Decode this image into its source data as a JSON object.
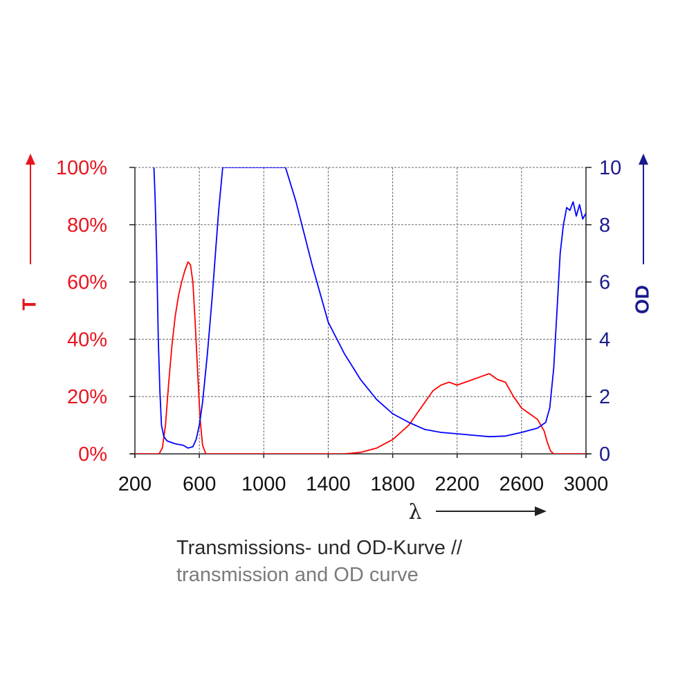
{
  "chart_data": {
    "type": "line",
    "x_axis": {
      "label": "λ",
      "range": [
        200,
        3000
      ],
      "ticks": [
        200,
        600,
        1000,
        1400,
        1800,
        2200,
        2600,
        3000
      ],
      "tick_labels": [
        "200",
        "600",
        "1000",
        "1400",
        "1800",
        "2200",
        "2600",
        "3000"
      ]
    },
    "y_left": {
      "label": "T",
      "range": [
        0,
        100
      ],
      "ticks": [
        0,
        20,
        40,
        60,
        80,
        100
      ],
      "tick_labels": [
        "0%",
        "20%",
        "40%",
        "60%",
        "80%",
        "100%"
      ],
      "color": "#e8141e"
    },
    "y_right": {
      "label": "OD",
      "range": [
        0,
        10
      ],
      "ticks": [
        0,
        2,
        4,
        6,
        8,
        10
      ],
      "tick_labels": [
        "0",
        "2",
        "4",
        "6",
        "8",
        "10"
      ],
      "color": "#1a1a8c"
    },
    "grid": true,
    "series": [
      {
        "axis": "left",
        "color": "#ff0000",
        "points": [
          [
            200,
            0
          ],
          [
            350,
            0
          ],
          [
            370,
            2
          ],
          [
            390,
            10
          ],
          [
            410,
            25
          ],
          [
            430,
            38
          ],
          [
            450,
            48
          ],
          [
            470,
            55
          ],
          [
            490,
            60
          ],
          [
            510,
            64
          ],
          [
            530,
            67
          ],
          [
            545,
            66
          ],
          [
            560,
            60
          ],
          [
            575,
            45
          ],
          [
            590,
            28
          ],
          [
            605,
            12
          ],
          [
            620,
            3
          ],
          [
            640,
            0
          ],
          [
            1500,
            0
          ],
          [
            1600,
            0.5
          ],
          [
            1700,
            2
          ],
          [
            1800,
            5
          ],
          [
            1850,
            7.5
          ],
          [
            1900,
            10
          ],
          [
            1950,
            14
          ],
          [
            2000,
            18
          ],
          [
            2050,
            22
          ],
          [
            2100,
            24
          ],
          [
            2150,
            25
          ],
          [
            2200,
            24
          ],
          [
            2250,
            25
          ],
          [
            2300,
            26
          ],
          [
            2350,
            27
          ],
          [
            2400,
            28
          ],
          [
            2450,
            26
          ],
          [
            2500,
            25
          ],
          [
            2550,
            20
          ],
          [
            2600,
            16
          ],
          [
            2650,
            14
          ],
          [
            2700,
            12
          ],
          [
            2740,
            8
          ],
          [
            2760,
            4
          ],
          [
            2780,
            1
          ],
          [
            2800,
            0
          ],
          [
            3000,
            0
          ]
        ]
      },
      {
        "axis": "right",
        "color": "#0000ff",
        "points": [
          [
            318,
            10
          ],
          [
            325,
            9
          ],
          [
            335,
            7
          ],
          [
            345,
            4
          ],
          [
            355,
            2.2
          ],
          [
            365,
            1
          ],
          [
            380,
            0.6
          ],
          [
            400,
            0.45
          ],
          [
            450,
            0.35
          ],
          [
            500,
            0.3
          ],
          [
            530,
            0.2
          ],
          [
            560,
            0.25
          ],
          [
            580,
            0.5
          ],
          [
            600,
            1
          ],
          [
            620,
            1.8
          ],
          [
            650,
            3.5
          ],
          [
            680,
            5.5
          ],
          [
            700,
            7
          ],
          [
            720,
            8.5
          ],
          [
            745,
            10
          ],
          [
            1135,
            10
          ],
          [
            1200,
            8.8
          ],
          [
            1300,
            6.6
          ],
          [
            1400,
            4.6
          ],
          [
            1500,
            3.5
          ],
          [
            1600,
            2.6
          ],
          [
            1700,
            1.9
          ],
          [
            1800,
            1.4
          ],
          [
            1900,
            1.1
          ],
          [
            2000,
            0.85
          ],
          [
            2100,
            0.75
          ],
          [
            2200,
            0.7
          ],
          [
            2300,
            0.65
          ],
          [
            2400,
            0.6
          ],
          [
            2500,
            0.62
          ],
          [
            2600,
            0.75
          ],
          [
            2700,
            0.9
          ],
          [
            2750,
            1.1
          ],
          [
            2775,
            1.6
          ],
          [
            2800,
            3
          ],
          [
            2820,
            5
          ],
          [
            2840,
            7
          ],
          [
            2860,
            8
          ],
          [
            2880,
            8.6
          ],
          [
            2900,
            8.5
          ],
          [
            2920,
            8.8
          ],
          [
            2940,
            8.3
          ],
          [
            2960,
            8.7
          ],
          [
            2980,
            8.2
          ],
          [
            3000,
            8.4
          ]
        ]
      }
    ]
  },
  "caption": {
    "line1": "Transmissions- und OD-Kurve //",
    "line2": "transmission and OD curve"
  }
}
